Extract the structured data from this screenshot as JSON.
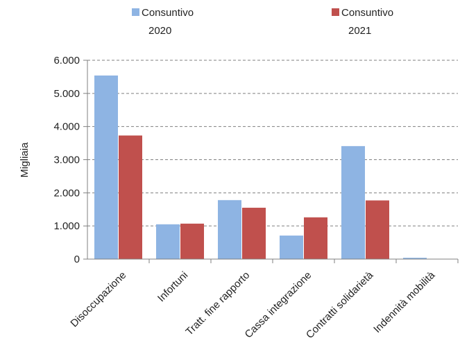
{
  "chart_data": {
    "type": "bar",
    "categories": [
      "Disoccupazione",
      "Infortuni",
      "Tratt. fine rapporto",
      "Cassa integrazione",
      "Contratti solidarietà",
      "Indennità mobilità"
    ],
    "series": [
      {
        "name_lines": [
          "Consuntivo",
          "2020"
        ],
        "color": "#8EB4E3",
        "values": [
          5540,
          1050,
          1780,
          710,
          3410,
          40
        ]
      },
      {
        "name_lines": [
          "Consuntivo",
          "2021"
        ],
        "color": "#C0504D",
        "values": [
          3730,
          1070,
          1550,
          1260,
          1770,
          5
        ]
      }
    ],
    "ylabel": "Migliaia",
    "ylim": [
      0,
      6000
    ],
    "yticks": [
      0,
      1000,
      2000,
      3000,
      4000,
      5000,
      6000
    ],
    "ytick_labels": [
      "0",
      "1.000",
      "2.000",
      "3.000",
      "4.000",
      "5.000",
      "6.000"
    ],
    "grid": true,
    "legend_position": "top"
  }
}
